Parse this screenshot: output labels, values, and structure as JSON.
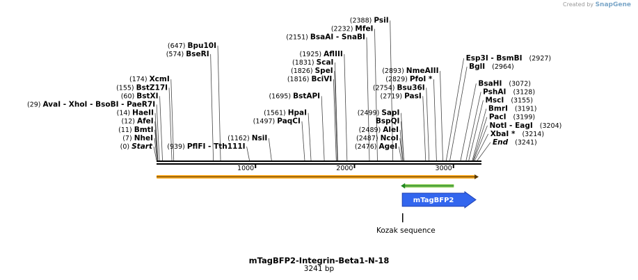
{
  "credit": {
    "created_by": "Created by",
    "brand": "SnapGene"
  },
  "plasmid": {
    "name": "mTagBFP2-Integrin-Beta1-N-18",
    "size_label": "3241 bp",
    "length": 3241
  },
  "axis_ticks": [
    {
      "value": 1000,
      "label": "1000"
    },
    {
      "value": 2000,
      "label": "2000"
    },
    {
      "value": 3000,
      "label": "3000"
    }
  ],
  "sites": [
    {
      "name": "Start",
      "pos": "(0)",
      "bp": 0,
      "italic": true,
      "line": 1
    },
    {
      "name": "NheI",
      "pos": "(7)",
      "bp": 7,
      "line": 2
    },
    {
      "name": "BmtI",
      "pos": "(11)",
      "bp": 11,
      "line": 3
    },
    {
      "name": "AfeI",
      "pos": "(12)",
      "bp": 12,
      "line": 4
    },
    {
      "name": "HaeII",
      "pos": "(14)",
      "bp": 14,
      "line": 5
    },
    {
      "name": "AvaI  - XhoI  - BsoBI  - PaeR7I",
      "pos": "(29)",
      "bp": 29,
      "line": 6
    },
    {
      "name": "BstXI",
      "pos": "(60)",
      "bp": 60,
      "line": 7
    },
    {
      "name": "BstZ17I",
      "pos": "(155)",
      "bp": 155,
      "line": 8
    },
    {
      "name": "XcmI",
      "pos": "(174)",
      "bp": 174,
      "line": 9
    },
    {
      "name": "BseRI",
      "pos": "(574)",
      "bp": 574,
      "line": 12
    },
    {
      "name": "Bpu10I",
      "pos": "(647)",
      "bp": 647,
      "line": 13
    },
    {
      "name": "PflFI  - Tth111I",
      "pos": "(939)",
      "bp": 939,
      "line": 1
    },
    {
      "name": "NsiI",
      "pos": "(1162)",
      "bp": 1162,
      "line": 2
    },
    {
      "name": "PaqCI",
      "pos": "(1497)",
      "bp": 1497,
      "line": 4
    },
    {
      "name": "HpaI",
      "pos": "(1561)",
      "bp": 1561,
      "line": 5
    },
    {
      "name": "BstAPI",
      "pos": "(1695)",
      "bp": 1695,
      "line": 7
    },
    {
      "name": "BciVI",
      "pos": "(1816)",
      "bp": 1816,
      "line": 9
    },
    {
      "name": "SpeI",
      "pos": "(1826)",
      "bp": 1826,
      "line": 10
    },
    {
      "name": "ScaI",
      "pos": "(1831)",
      "bp": 1831,
      "line": 11
    },
    {
      "name": "AflIII",
      "pos": "(1925)",
      "bp": 1925,
      "line": 12
    },
    {
      "name": "BsaAI  - SnaBI",
      "pos": "(2151)",
      "bp": 2151,
      "line": 14
    },
    {
      "name": "MfeI",
      "pos": "(2232)",
      "bp": 2232,
      "line": 15
    },
    {
      "name": "PsiI",
      "pos": "(2388)",
      "bp": 2388,
      "line": 16
    },
    {
      "name": "AgeI",
      "pos": "(2476)",
      "bp": 2476,
      "line": 1
    },
    {
      "name": "NcoI",
      "pos": "(2487)",
      "bp": 2487,
      "line": 2
    },
    {
      "name": "AleI",
      "pos": "(2489)",
      "bp": 2489,
      "line": 3
    },
    {
      "name": "BspQI",
      "pos": "",
      "bp": 2499,
      "line": 4
    },
    {
      "name": "SapI",
      "pos": "(2499)",
      "bp": 2499,
      "line": 5
    },
    {
      "name": "PasI",
      "pos": "(2719)",
      "bp": 2719,
      "line": 7
    },
    {
      "name": "Bsu36I",
      "pos": "(2754)",
      "bp": 2754,
      "line": 8
    },
    {
      "name": "PfoI *",
      "pos": "(2829)",
      "bp": 2829,
      "line": 9
    },
    {
      "name": "NmeAIII",
      "pos": "(2893)",
      "bp": 2893,
      "line": 10
    },
    {
      "name": "BglI",
      "pos": "(2964)",
      "bp": 2964,
      "line": 10.5
    },
    {
      "name": "Esp3I  - BsmBI",
      "pos": "(2927)",
      "bp": 2927,
      "line": 11.5
    },
    {
      "name": "BsaHI",
      "pos": "(3072)",
      "bp": 3072,
      "line": 8.5
    },
    {
      "name": "PshAI",
      "pos": "(3128)",
      "bp": 3128,
      "line": 7.5
    },
    {
      "name": "MscI",
      "pos": "(3155)",
      "bp": 3155,
      "line": 6.5
    },
    {
      "name": "BmrI",
      "pos": "(3191)",
      "bp": 3191,
      "line": 5.5
    },
    {
      "name": "PacI",
      "pos": "(3199)",
      "bp": 3199,
      "line": 4.5
    },
    {
      "name": "NotI  - EagI",
      "pos": "(3204)",
      "bp": 3204,
      "line": 3.5
    },
    {
      "name": "XbaI *",
      "pos": "(3214)",
      "bp": 3214,
      "line": 2.5
    },
    {
      "name": "End",
      "pos": "(3241)",
      "bp": 3241,
      "italic": true,
      "line": 1.5
    }
  ],
  "features": [
    {
      "name": "mTagBFP2",
      "start": 2476,
      "end": 3241,
      "color": "#3366ee",
      "direction": "forward"
    }
  ],
  "primer_color": "#228822",
  "backbone_highlight": "#f5a623",
  "annotation": {
    "label": "Kozak sequence",
    "bp": 2487
  }
}
